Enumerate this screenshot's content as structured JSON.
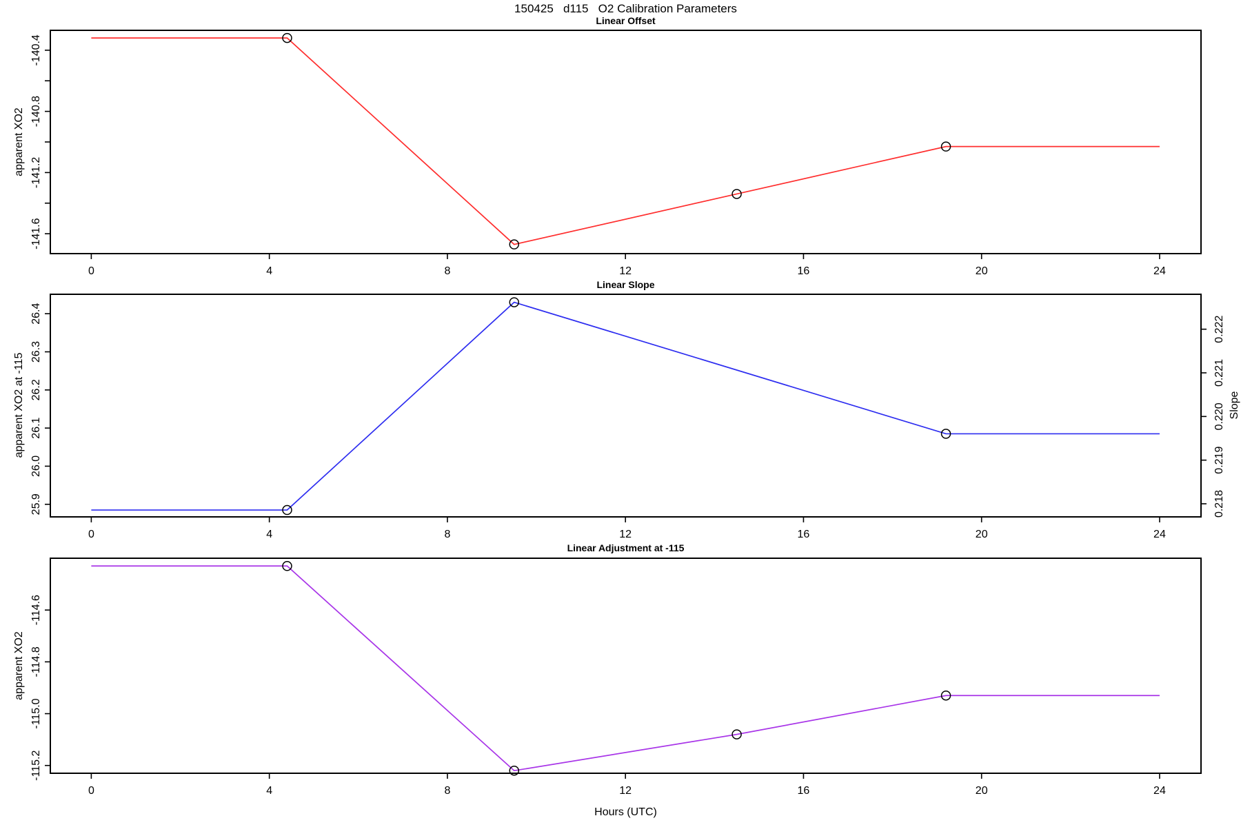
{
  "figure": {
    "title": "150425   d115   O2 Calibration Parameters",
    "background": "#ffffff",
    "text_color": "#000000"
  },
  "chart_data": [
    {
      "type": "line",
      "title": "Linear Offset",
      "ylabel": "apparent XO2",
      "line_color": "#ff2d2d",
      "marker": "open-circle",
      "marker_color": "#000000",
      "x": [
        0,
        4.4,
        9.5,
        14.5,
        19.2,
        24
      ],
      "y": [
        -140.32,
        -140.32,
        -141.67,
        -141.34,
        -141.03,
        -141.03
      ],
      "marker_x": [
        4.4,
        9.5,
        14.5,
        19.2
      ],
      "marker_y": [
        -140.32,
        -141.67,
        -141.34,
        -141.03
      ],
      "xlim": [
        -0.92,
        24.93
      ],
      "ylim": [
        -141.73,
        -140.27
      ],
      "xticks": [
        0,
        4,
        8,
        12,
        16,
        20,
        24
      ],
      "yticks": [
        {
          "v": -140.4,
          "label": "-140.4"
        },
        {
          "v": -140.6,
          "label": ""
        },
        {
          "v": -140.8,
          "label": "-140.8"
        },
        {
          "v": -141.0,
          "label": ""
        },
        {
          "v": -141.2,
          "label": "-141.2"
        },
        {
          "v": -141.4,
          "label": ""
        },
        {
          "v": -141.6,
          "label": "-141.6"
        }
      ],
      "grid": false,
      "legend": "none"
    },
    {
      "type": "line",
      "title": "Linear Slope",
      "ylabel": "apparent XO2 at -115",
      "ylabel_right": "Slope",
      "line_color": "#2d2df0",
      "marker": "open-circle",
      "marker_color": "#000000",
      "x": [
        0,
        4.4,
        9.5,
        19.2,
        24
      ],
      "y": [
        25.885,
        25.885,
        26.43,
        26.085,
        26.085
      ],
      "marker_x": [
        4.4,
        9.5,
        19.2
      ],
      "marker_y": [
        25.885,
        26.43,
        26.085
      ],
      "slope_values": [
        0.2179,
        0.2226,
        0.2197
      ],
      "xlim": [
        -0.92,
        24.93
      ],
      "ylim": [
        25.867,
        26.451
      ],
      "ylim_right": [
        0.2177,
        0.2228
      ],
      "xticks": [
        0,
        4,
        8,
        12,
        16,
        20,
        24
      ],
      "yticks": [
        {
          "v": 25.9,
          "label": "25.9"
        },
        {
          "v": 26.0,
          "label": "26.0"
        },
        {
          "v": 26.1,
          "label": "26.1"
        },
        {
          "v": 26.2,
          "label": "26.2"
        },
        {
          "v": 26.3,
          "label": "26.3"
        },
        {
          "v": 26.4,
          "label": "26.4"
        }
      ],
      "yticks_right": [
        {
          "v": 0.218,
          "label": "0.218"
        },
        {
          "v": 0.219,
          "label": "0.219"
        },
        {
          "v": 0.22,
          "label": "0.220"
        },
        {
          "v": 0.221,
          "label": "0.221"
        },
        {
          "v": 0.222,
          "label": "0.222"
        }
      ],
      "grid": false,
      "legend": "none"
    },
    {
      "type": "line",
      "title": "Linear Adjustment at -115",
      "ylabel": "apparent XO2",
      "xlabel": "Hours (UTC)",
      "line_color": "#a834e8",
      "marker": "open-circle",
      "marker_color": "#000000",
      "x": [
        0,
        4.4,
        9.5,
        14.5,
        19.2,
        24
      ],
      "y": [
        -114.43,
        -114.43,
        -115.22,
        -115.08,
        -114.93,
        -114.93
      ],
      "marker_x": [
        4.4,
        9.5,
        14.5,
        19.2
      ],
      "marker_y": [
        -114.43,
        -115.22,
        -115.08,
        -114.93
      ],
      "xlim": [
        -0.92,
        24.93
      ],
      "ylim": [
        -115.23,
        -114.4
      ],
      "xticks": [
        0,
        4,
        8,
        12,
        16,
        20,
        24
      ],
      "yticks": [
        {
          "v": -114.6,
          "label": "-114.6"
        },
        {
          "v": -114.8,
          "label": "-114.8"
        },
        {
          "v": -115.0,
          "label": "-115.0"
        },
        {
          "v": -115.2,
          "label": "-115.2"
        }
      ],
      "grid": false,
      "legend": "none"
    }
  ]
}
